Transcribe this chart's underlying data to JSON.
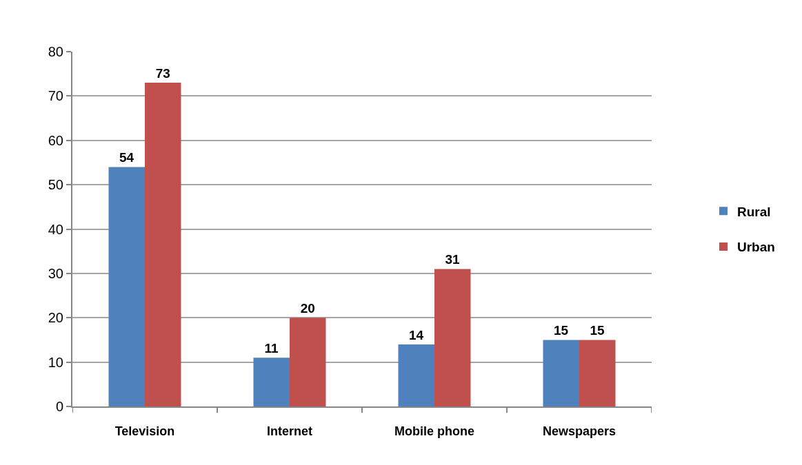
{
  "chart_data": {
    "type": "bar",
    "categories": [
      "Television",
      "Internet",
      "Mobile phone",
      "Newspapers"
    ],
    "series": [
      {
        "name": "Rural",
        "color": "#4f81bd",
        "values": [
          54,
          11,
          14,
          15
        ]
      },
      {
        "name": "Urban",
        "color": "#c0504d",
        "values": [
          73,
          20,
          31,
          15
        ]
      }
    ],
    "ylim": [
      0,
      80
    ],
    "yticks": [
      0,
      10,
      20,
      30,
      40,
      50,
      60,
      70,
      80
    ],
    "grid": "y",
    "legend": "right",
    "data_labels": true
  }
}
